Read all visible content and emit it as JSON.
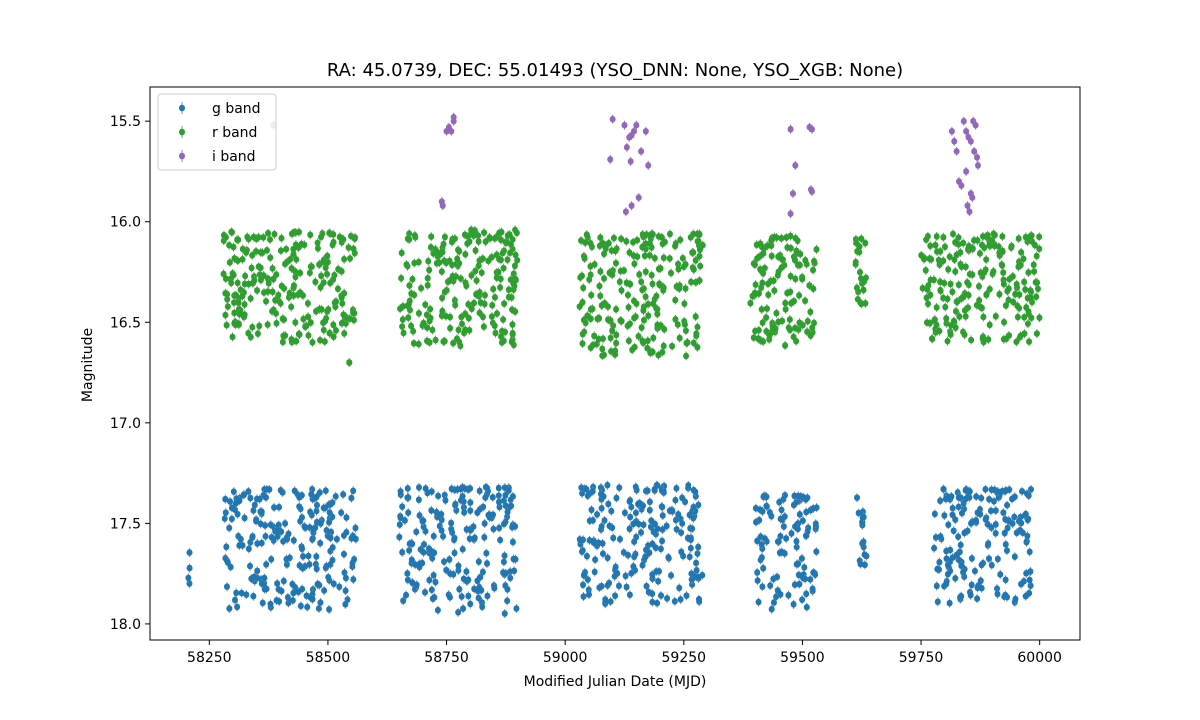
{
  "chart_data": {
    "type": "scatter",
    "title": "RA: 45.0739, DEC: 55.01493 (YSO_DNN: None, YSO_XGB: None)",
    "xlabel": "Modified Julian Date (MJD)",
    "ylabel": "Magnitude",
    "xlim": [
      58125,
      60085
    ],
    "ylim": [
      18.08,
      15.33
    ],
    "y_inverted": true,
    "xticks": [
      58250,
      58500,
      58750,
      59000,
      59250,
      59500,
      59750,
      60000
    ],
    "xtick_labels": [
      "58250",
      "58500",
      "58750",
      "59000",
      "59250",
      "59500",
      "59750",
      "60000"
    ],
    "yticks": [
      15.5,
      16.0,
      16.5,
      17.0,
      17.5,
      18.0
    ],
    "ytick_labels": [
      "15.5",
      "16.0",
      "16.5",
      "17.0",
      "17.5",
      "18.0"
    ],
    "grid": false,
    "legend_position": "upper-left",
    "series": [
      {
        "name": "g band",
        "color": "#1f77b4",
        "error_bars": true,
        "segments": [
          {
            "x": [
              58205,
              58210
            ],
            "y": [
              17.6,
              17.8
            ]
          },
          {
            "x": [
              58280,
              58560
            ],
            "y": [
              17.33,
              17.93
            ]
          },
          {
            "x": [
              58650,
              58900
            ],
            "y": [
              17.32,
              17.95
            ]
          },
          {
            "x": [
              59030,
              59290
            ],
            "y": [
              17.31,
              17.92
            ]
          },
          {
            "x": [
              59400,
              59530
            ],
            "y": [
              17.36,
              17.93
            ]
          },
          {
            "x": [
              59615,
              59635
            ],
            "y": [
              17.37,
              17.75
            ]
          },
          {
            "x": [
              59775,
              59985
            ],
            "y": [
              17.33,
              17.9
            ]
          }
        ],
        "approx_count": 900
      },
      {
        "name": "r band",
        "color": "#2ca02c",
        "error_bars": true,
        "segments": [
          {
            "x": [
              58280,
              58560
            ],
            "y": [
              16.05,
              16.6
            ]
          },
          {
            "x": [
              58545,
              58545
            ],
            "y": [
              16.7,
              16.7
            ]
          },
          {
            "x": [
              58650,
              58900
            ],
            "y": [
              16.04,
              16.62
            ]
          },
          {
            "x": [
              59030,
              59290
            ],
            "y": [
              16.06,
              16.67
            ]
          },
          {
            "x": [
              59390,
              59530
            ],
            "y": [
              16.07,
              16.62
            ]
          },
          {
            "x": [
              59610,
              59635
            ],
            "y": [
              16.08,
              16.42
            ]
          },
          {
            "x": [
              59750,
              60000
            ],
            "y": [
              16.06,
              16.6
            ]
          }
        ],
        "approx_count": 1000
      },
      {
        "name": "i band",
        "color": "#9467bd",
        "error_bars": true,
        "points": [
          [
            58385,
            15.52
          ],
          [
            58750,
            15.55
          ],
          [
            58755,
            15.53
          ],
          [
            58765,
            15.48
          ],
          [
            58765,
            15.5
          ],
          [
            58760,
            15.55
          ],
          [
            58740,
            15.9
          ],
          [
            58742,
            15.92
          ],
          [
            59100,
            15.49
          ],
          [
            59095,
            15.69
          ],
          [
            59125,
            15.52
          ],
          [
            59130,
            15.63
          ],
          [
            59135,
            15.58
          ],
          [
            59140,
            15.57
          ],
          [
            59145,
            15.55
          ],
          [
            59150,
            15.52
          ],
          [
            59138,
            15.7
          ],
          [
            59160,
            15.65
          ],
          [
            59170,
            15.55
          ],
          [
            59175,
            15.72
          ],
          [
            59128,
            15.95
          ],
          [
            59140,
            15.92
          ],
          [
            59155,
            15.88
          ],
          [
            59475,
            15.54
          ],
          [
            59485,
            15.72
          ],
          [
            59480,
            15.86
          ],
          [
            59475,
            15.96
          ],
          [
            59515,
            15.53
          ],
          [
            59520,
            15.54
          ],
          [
            59518,
            15.84
          ],
          [
            59520,
            15.85
          ],
          [
            59815,
            15.55
          ],
          [
            59820,
            15.6
          ],
          [
            59825,
            15.65
          ],
          [
            59830,
            15.8
          ],
          [
            59835,
            15.82
          ],
          [
            59840,
            15.5
          ],
          [
            59845,
            15.55
          ],
          [
            59850,
            15.58
          ],
          [
            59855,
            15.6
          ],
          [
            59860,
            15.5
          ],
          [
            59862,
            15.65
          ],
          [
            59865,
            15.52
          ],
          [
            59868,
            15.68
          ],
          [
            59848,
            15.92
          ],
          [
            59852,
            15.95
          ],
          [
            59855,
            15.86
          ],
          [
            59858,
            15.88
          ],
          [
            59845,
            15.75
          ],
          [
            59870,
            15.72
          ]
        ]
      }
    ]
  }
}
